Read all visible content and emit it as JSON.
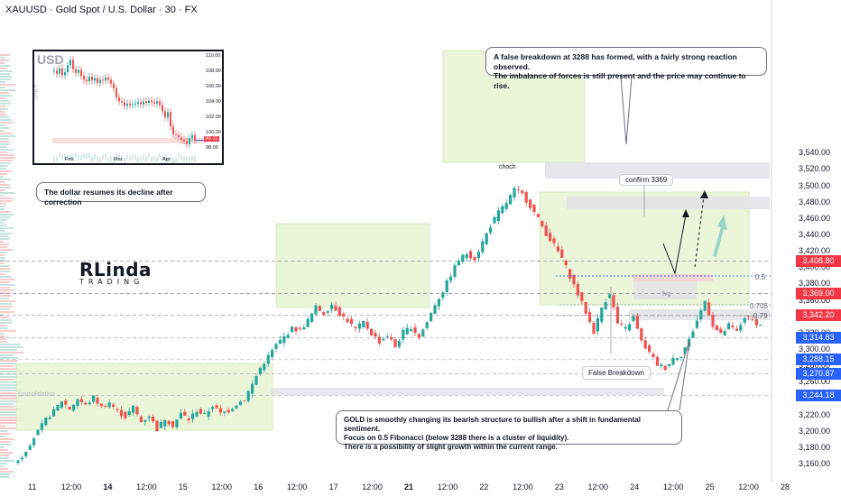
{
  "header": {
    "title": "XAUUSD · Gold Spot / U.S. Dollar · 30 · FX"
  },
  "callouts": {
    "top": "A false breakdown at 3288 has formed, with a fairly strong reaction observed.\nThe imbalance of forces is still present and the price may continue to rise.",
    "dollar": "The dollar resumes its decline after correction",
    "bottom": "GOLD is smoothly changing its bearish structure to bullish after a shift in fundamental sentiment.\nFocus on 0.5 Fibonacci (below 3288 there is a cluster of liquidity).\nThere is a possibility of slight growth within the current range."
  },
  "labels": {
    "choch": "choch",
    "confirm": "confirm 3369",
    "false_breakdown": "False Breakdown",
    "consolidation": "consolidation",
    "fvg": "fvg",
    "fib_05": "0.5",
    "fib_0705": "0.705",
    "fib_079": "0.79"
  },
  "logo": {
    "line1": "RLinda",
    "line2": "TRADING"
  },
  "inset": {
    "title": "USD",
    "vertical_label": "DAILY",
    "y_ticks": [
      "110.00",
      "108.00",
      "106.00",
      "104.00",
      "102.00",
      "100.00",
      "98.00"
    ],
    "x_ticks": [
      "Feb",
      "Mar",
      "Apr"
    ],
    "price_badge": "99.11",
    "close_series": [
      108.2,
      107.8,
      108.5,
      107.6,
      108.0,
      108.9,
      109.6,
      108.4,
      107.9,
      108.3,
      107.5,
      107.0,
      106.8,
      107.4,
      106.9,
      107.2,
      106.6,
      107.0,
      106.9,
      107.3,
      107.0,
      106.5,
      105.9,
      104.7,
      104.2,
      104.1,
      103.6,
      103.9,
      103.7,
      103.8,
      103.9,
      104.1,
      103.8,
      104.2,
      104.0,
      104.3,
      104.1,
      103.9,
      104.2,
      103.7,
      102.9,
      102.1,
      102.8,
      100.9,
      99.9,
      99.8,
      99.5,
      99.2,
      99.0,
      98.6,
      99.4,
      99.8,
      99.1
    ]
  },
  "price_badges": [
    {
      "value": "3,408.80",
      "color": "#f23645"
    },
    {
      "value": "3,369.00",
      "color": "#f23645"
    },
    {
      "value": "3,342.20",
      "color": "#f23645"
    },
    {
      "value": "3,314.83",
      "color": "#2962ff"
    },
    {
      "value": "3,288.15",
      "color": "#2962ff"
    },
    {
      "value": "3,270.87",
      "color": "#2962ff"
    },
    {
      "value": "3,244.18",
      "color": "#2962ff"
    }
  ],
  "x_ticks": [
    {
      "label": "11",
      "bold": false
    },
    {
      "label": "12:00",
      "bold": false
    },
    {
      "label": "14",
      "bold": true
    },
    {
      "label": "12:00",
      "bold": false
    },
    {
      "label": "15",
      "bold": false
    },
    {
      "label": "12:00",
      "bold": false
    },
    {
      "label": "16",
      "bold": false
    },
    {
      "label": "12:00",
      "bold": false
    },
    {
      "label": "17",
      "bold": false
    },
    {
      "label": "12:00",
      "bold": false
    },
    {
      "label": "21",
      "bold": true
    },
    {
      "label": "12:00",
      "bold": false
    },
    {
      "label": "22",
      "bold": false
    },
    {
      "label": "12:00",
      "bold": false
    },
    {
      "label": "23",
      "bold": false
    },
    {
      "label": "12:00",
      "bold": false
    },
    {
      "label": "24",
      "bold": false
    },
    {
      "label": "12:00",
      "bold": false
    },
    {
      "label": "25",
      "bold": false
    },
    {
      "label": "12:00",
      "bold": false
    },
    {
      "label": "28",
      "bold": false
    }
  ],
  "colors": {
    "bull": "#26a69a",
    "bear": "#ef5350",
    "zone_green": "#e7f4d4",
    "zone_grey": "#e2e3e6",
    "blue_line": "#2962ff",
    "teal_arrow": "#8fd3c4"
  },
  "chart_data": {
    "type": "candlestick",
    "symbol": "XAUUSD",
    "timeframe": "30",
    "title": "XAUUSD · Gold Spot / U.S. Dollar · 30 · FX",
    "ylim": [
      3150,
      3540
    ],
    "y_ticks": [
      3160,
      3180,
      3200,
      3220,
      3240,
      3260,
      3280,
      3300,
      3320,
      3340,
      3360,
      3380,
      3400,
      3420,
      3440,
      3460,
      3480,
      3500,
      3520,
      3540
    ],
    "levels": [
      3408.8,
      3369.0,
      3342.2,
      3314.83,
      3288.15,
      3270.87,
      3244.18
    ],
    "fib_levels": [
      {
        "ratio": "0.5",
        "price": 3314.83
      },
      {
        "ratio": "0.705",
        "price": 3288.15
      },
      {
        "ratio": "0.79",
        "price": 3283
      }
    ],
    "price_path": [
      [
        0,
        3162
      ],
      [
        2,
        3170
      ],
      [
        4,
        3186
      ],
      [
        6,
        3200
      ],
      [
        8,
        3215
      ],
      [
        10,
        3225
      ],
      [
        12,
        3238
      ],
      [
        14,
        3228
      ],
      [
        16,
        3240
      ],
      [
        18,
        3232
      ],
      [
        20,
        3242
      ],
      [
        22,
        3230
      ],
      [
        24,
        3236
      ],
      [
        26,
        3225
      ],
      [
        28,
        3218
      ],
      [
        30,
        3230
      ],
      [
        32,
        3212
      ],
      [
        34,
        3220
      ],
      [
        36,
        3203
      ],
      [
        38,
        3216
      ],
      [
        40,
        3208
      ],
      [
        42,
        3222
      ],
      [
        44,
        3215
      ],
      [
        46,
        3226
      ],
      [
        48,
        3220
      ],
      [
        50,
        3232
      ],
      [
        52,
        3222
      ],
      [
        54,
        3226
      ],
      [
        56,
        3234
      ],
      [
        58,
        3240
      ],
      [
        60,
        3258
      ],
      [
        62,
        3278
      ],
      [
        64,
        3292
      ],
      [
        66,
        3306
      ],
      [
        68,
        3316
      ],
      [
        70,
        3326
      ],
      [
        72,
        3324
      ],
      [
        74,
        3336
      ],
      [
        76,
        3352
      ],
      [
        78,
        3345
      ],
      [
        80,
        3356
      ],
      [
        82,
        3344
      ],
      [
        84,
        3336
      ],
      [
        86,
        3325
      ],
      [
        88,
        3334
      ],
      [
        90,
        3320
      ],
      [
        92,
        3310
      ],
      [
        94,
        3318
      ],
      [
        96,
        3304
      ],
      [
        98,
        3322
      ],
      [
        100,
        3328
      ],
      [
        102,
        3316
      ],
      [
        104,
        3334
      ],
      [
        106,
        3356
      ],
      [
        108,
        3372
      ],
      [
        110,
        3392
      ],
      [
        112,
        3410
      ],
      [
        114,
        3418
      ],
      [
        116,
        3412
      ],
      [
        118,
        3432
      ],
      [
        120,
        3452
      ],
      [
        122,
        3468
      ],
      [
        124,
        3480
      ],
      [
        126,
        3496
      ],
      [
        128,
        3490
      ],
      [
        130,
        3476
      ],
      [
        132,
        3460
      ],
      [
        134,
        3442
      ],
      [
        136,
        3428
      ],
      [
        138,
        3412
      ],
      [
        140,
        3390
      ],
      [
        142,
        3368
      ],
      [
        144,
        3346
      ],
      [
        146,
        3322
      ],
      [
        148,
        3352
      ],
      [
        150,
        3370
      ],
      [
        152,
        3332
      ],
      [
        154,
        3326
      ],
      [
        156,
        3340
      ],
      [
        158,
        3310
      ],
      [
        160,
        3296
      ],
      [
        162,
        3282
      ],
      [
        164,
        3278
      ],
      [
        166,
        3290
      ],
      [
        168,
        3294
      ],
      [
        170,
        3312
      ],
      [
        172,
        3336
      ],
      [
        174,
        3360
      ],
      [
        176,
        3330
      ],
      [
        178,
        3318
      ],
      [
        180,
        3330
      ],
      [
        182,
        3322
      ],
      [
        184,
        3340
      ],
      [
        186,
        3336
      ],
      [
        188,
        3330
      ]
    ]
  }
}
